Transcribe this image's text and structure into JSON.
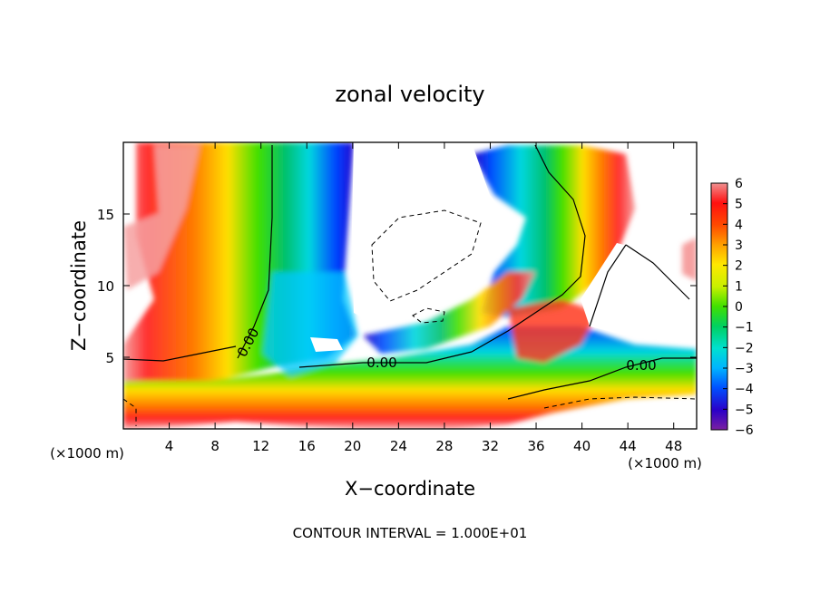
{
  "chart_data": {
    "type": "heatmap",
    "title": "zonal velocity",
    "xlabel": "X−coordinate",
    "ylabel": "Z−coordinate",
    "x_unit": "(×1000 m)",
    "x_unit_right": "(×1000 m)",
    "footer": "CONTOUR INTERVAL = 1.000E+01",
    "xlim": [
      0,
      50
    ],
    "ylim": [
      0,
      20
    ],
    "x_ticks": [
      4,
      8,
      12,
      16,
      20,
      24,
      28,
      32,
      36,
      40,
      44,
      48
    ],
    "y_ticks": [
      5,
      10,
      15
    ],
    "colorbar": {
      "min": -6,
      "max": 6,
      "ticks": [
        6,
        5,
        4,
        3,
        2,
        1,
        0,
        -1,
        -2,
        -3,
        -4,
        -5,
        -6
      ],
      "tick_labels": [
        "6",
        "5",
        "4",
        "3",
        "2",
        "1",
        "0",
        "−1",
        "−2",
        "−3",
        "−4",
        "−5",
        "−6"
      ],
      "colors": [
        "#7a1fa2",
        "#2a00c8",
        "#0050ff",
        "#00b4ff",
        "#00e0d0",
        "#00d060",
        "#40e000",
        "#c8f000",
        "#ffe800",
        "#ffa000",
        "#ff4a00",
        "#ff1010",
        "#f09090"
      ]
    },
    "contour_labels": [
      "0.00",
      "0.00",
      "0.00"
    ],
    "bands": [
      {
        "name": "left-positive-jet",
        "sign": "positive",
        "x_range": [
          2,
          11
        ],
        "z_range": [
          5,
          20
        ]
      },
      {
        "name": "left-negative-jet",
        "sign": "negative",
        "x_range": [
          10,
          19
        ],
        "z_range": [
          0,
          20
        ]
      },
      {
        "name": "low-level-positive-flow",
        "sign": "positive",
        "x_range": [
          14,
          50
        ],
        "z_range": [
          0,
          5
        ]
      },
      {
        "name": "right-negative-jet",
        "sign": "negative",
        "x_range": [
          30,
          40
        ],
        "z_range": [
          5,
          20
        ]
      },
      {
        "name": "right-positive-jet",
        "sign": "positive",
        "x_range": [
          36,
          43
        ],
        "z_range": [
          10,
          20
        ]
      }
    ]
  }
}
